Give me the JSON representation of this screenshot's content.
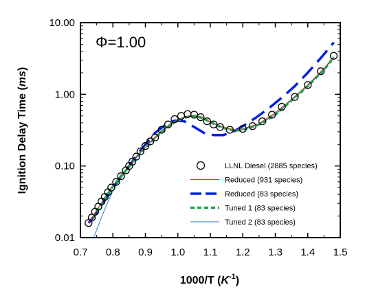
{
  "chart_data": {
    "type": "line",
    "title": "",
    "annotation": "Φ=1.00",
    "xlabel": {
      "main": "1000/T (",
      "italic": "K",
      "sup": "-1",
      "close": ")"
    },
    "ylabel": {
      "main": "Ignition Delay Time (",
      "italic": "ms",
      "close": ")"
    },
    "xlim": [
      0.7,
      1.5
    ],
    "ylim": [
      0.01,
      10
    ],
    "y_scale": "log",
    "x_ticks": [
      0.7,
      0.8,
      0.9,
      1.0,
      1.1,
      1.2,
      1.3,
      1.4,
      1.5
    ],
    "x_tick_labels": [
      "0.7",
      "0.8",
      "0.9",
      "1.0",
      "1.1",
      "1.2",
      "1.3",
      "1.4",
      "1.5"
    ],
    "y_ticks": [
      0.01,
      0.1,
      1,
      10
    ],
    "y_tick_labels": [
      "0.01",
      "0.10",
      "1.00",
      "10.00"
    ],
    "grid": false,
    "legend_position": "bottom-right",
    "series": [
      {
        "name": "LLNL Diesel (2885 species)",
        "style": "markers",
        "color": "#000000",
        "x": [
          0.725,
          0.735,
          0.745,
          0.755,
          0.765,
          0.775,
          0.785,
          0.795,
          0.81,
          0.825,
          0.84,
          0.85,
          0.86,
          0.872,
          0.885,
          0.9,
          0.915,
          0.93,
          0.95,
          0.97,
          0.99,
          1.01,
          1.03,
          1.05,
          1.07,
          1.09,
          1.11,
          1.13,
          1.16,
          1.2,
          1.23,
          1.26,
          1.29,
          1.32,
          1.36,
          1.4,
          1.44,
          1.48
        ],
        "y": [
          0.016,
          0.019,
          0.023,
          0.027,
          0.032,
          0.037,
          0.043,
          0.05,
          0.06,
          0.072,
          0.087,
          0.1,
          0.115,
          0.135,
          0.16,
          0.19,
          0.22,
          0.25,
          0.32,
          0.38,
          0.45,
          0.5,
          0.53,
          0.52,
          0.48,
          0.42,
          0.38,
          0.35,
          0.32,
          0.33,
          0.36,
          0.42,
          0.52,
          0.67,
          0.92,
          1.35,
          2.1,
          3.45
        ]
      },
      {
        "name": "Reduced (931 species)",
        "style": "solid",
        "color": "#e8231f",
        "x": [
          0.725,
          0.75,
          0.775,
          0.8,
          0.825,
          0.85,
          0.875,
          0.9,
          0.925,
          0.95,
          0.975,
          1.0,
          1.025,
          1.05,
          1.075,
          1.1,
          1.125,
          1.15,
          1.175,
          1.2,
          1.25,
          1.3,
          1.35,
          1.4,
          1.45,
          1.48
        ],
        "y": [
          0.016,
          0.024,
          0.036,
          0.053,
          0.073,
          0.1,
          0.14,
          0.19,
          0.24,
          0.31,
          0.38,
          0.44,
          0.49,
          0.51,
          0.47,
          0.41,
          0.37,
          0.34,
          0.32,
          0.33,
          0.39,
          0.55,
          0.85,
          1.35,
          2.3,
          3.3
        ]
      },
      {
        "name": "Reduced (83 species)",
        "style": "long-dash",
        "color": "#0022dd",
        "x": [
          0.725,
          0.75,
          0.775,
          0.8,
          0.825,
          0.85,
          0.875,
          0.9,
          0.93,
          0.96,
          0.99,
          1.02,
          1.05,
          1.08,
          1.11,
          1.14,
          1.17,
          1.2,
          1.24,
          1.28,
          1.32,
          1.36,
          1.4,
          1.44,
          1.48
        ],
        "y": [
          0.016,
          0.022,
          0.034,
          0.05,
          0.072,
          0.1,
          0.145,
          0.2,
          0.29,
          0.37,
          0.43,
          0.42,
          0.35,
          0.29,
          0.27,
          0.27,
          0.3,
          0.36,
          0.47,
          0.64,
          0.9,
          1.3,
          2.0,
          3.2,
          5.3
        ]
      },
      {
        "name": "Tuned 1 (83 species)",
        "style": "dotted",
        "color": "#1aa64a",
        "x": [
          0.74,
          0.76,
          0.78,
          0.8,
          0.825,
          0.85,
          0.875,
          0.9,
          0.925,
          0.95,
          0.975,
          1.0,
          1.025,
          1.05,
          1.075,
          1.1,
          1.125,
          1.15,
          1.175,
          1.2,
          1.25,
          1.3,
          1.35,
          1.4,
          1.45,
          1.48
        ],
        "y": [
          0.019,
          0.027,
          0.038,
          0.052,
          0.072,
          0.098,
          0.135,
          0.18,
          0.23,
          0.3,
          0.37,
          0.43,
          0.48,
          0.5,
          0.47,
          0.41,
          0.36,
          0.33,
          0.31,
          0.32,
          0.38,
          0.52,
          0.82,
          1.3,
          2.2,
          3.3
        ]
      },
      {
        "name": "Tuned 2 (83 species)",
        "style": "thin-solid",
        "color": "#4a90d9",
        "x": [
          0.74,
          0.76,
          0.78,
          0.8,
          0.825,
          0.85,
          0.875,
          0.9,
          0.925,
          0.95,
          0.975,
          1.0,
          1.025,
          1.05,
          1.075,
          1.1,
          1.125,
          1.15,
          1.175,
          1.2,
          1.25,
          1.3,
          1.35,
          1.4,
          1.45,
          1.48
        ],
        "y": [
          0.0098,
          0.017,
          0.028,
          0.045,
          0.068,
          0.095,
          0.135,
          0.18,
          0.23,
          0.3,
          0.37,
          0.43,
          0.48,
          0.5,
          0.47,
          0.41,
          0.36,
          0.33,
          0.31,
          0.32,
          0.38,
          0.52,
          0.82,
          1.3,
          2.2,
          3.3
        ]
      }
    ]
  }
}
